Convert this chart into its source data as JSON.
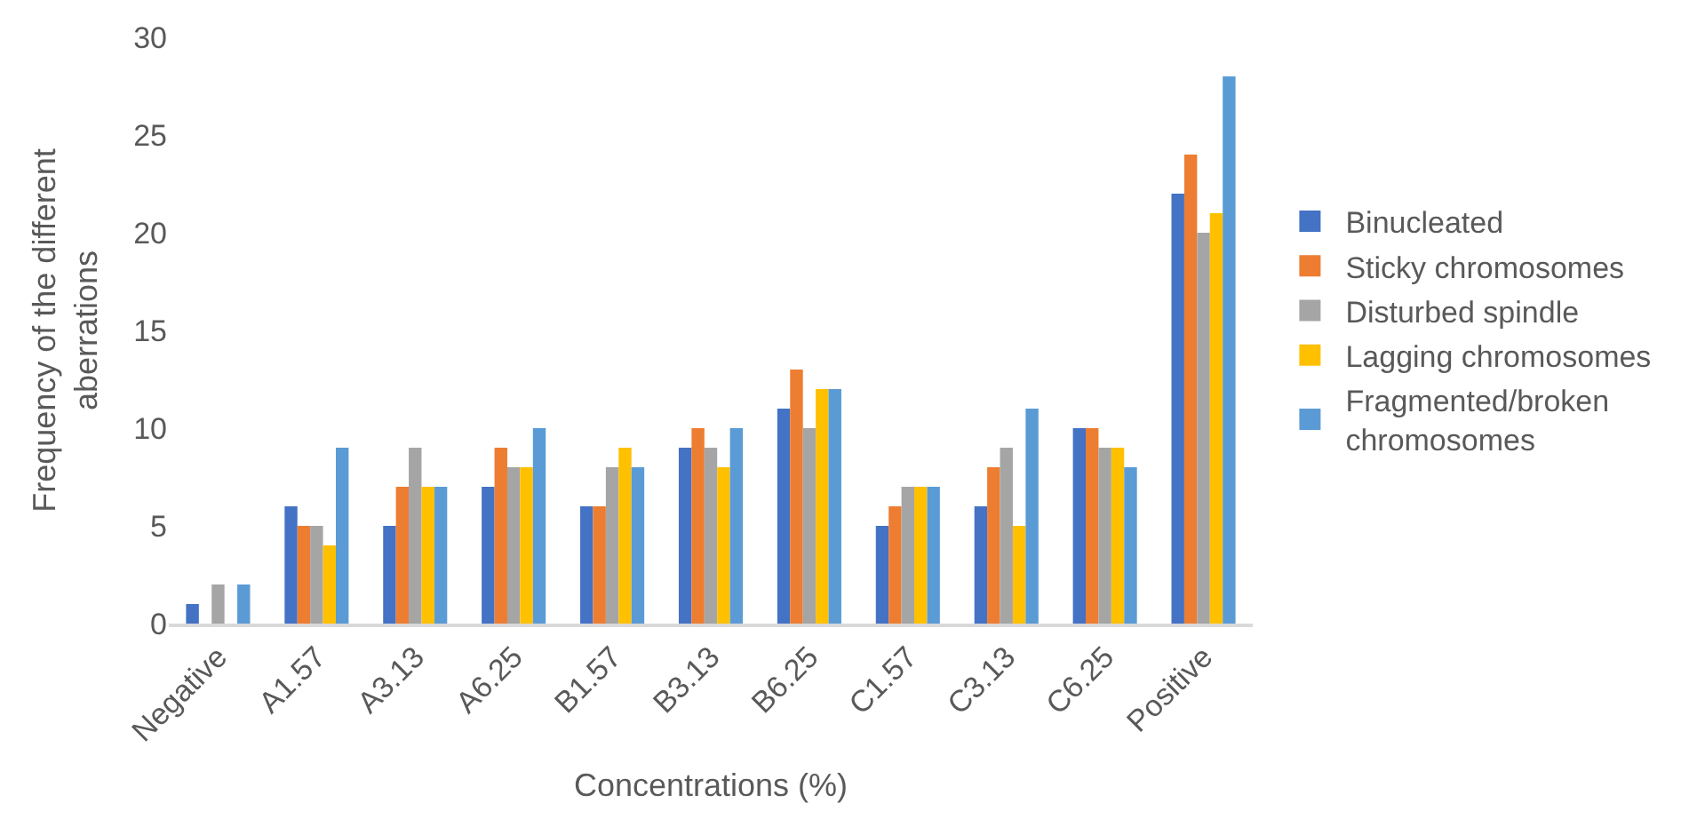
{
  "chart_data": {
    "type": "bar",
    "xlabel": "Concentrations (%)",
    "ylabel": "Frequency of the different aberrations",
    "categories": [
      "Negative",
      "A1.57",
      "A3.13",
      "A6.25",
      "B1.57",
      "B3.13",
      "B6.25",
      "C1.57",
      "C3.13",
      "C6.25",
      "Positive"
    ],
    "series": [
      {
        "name": "Binucleated",
        "color": "#4472c4",
        "values": [
          1,
          6,
          5,
          7,
          6,
          9,
          11,
          5,
          6,
          10,
          22
        ]
      },
      {
        "name": "Sticky chromosomes",
        "color": "#ed7d31",
        "values": [
          0,
          5,
          7,
          9,
          6,
          10,
          13,
          6,
          8,
          10,
          24
        ]
      },
      {
        "name": "Disturbed spindle",
        "color": "#a5a5a5",
        "values": [
          2,
          5,
          9,
          8,
          8,
          9,
          10,
          7,
          9,
          9,
          20
        ]
      },
      {
        "name": "Lagging chromosomes",
        "color": "#ffc000",
        "values": [
          0,
          4,
          7,
          8,
          9,
          8,
          12,
          7,
          5,
          9,
          21
        ]
      },
      {
        "name": "Fragmented/broken chromosomes",
        "color": "#5b9bd5",
        "values": [
          2,
          9,
          7,
          10,
          8,
          10,
          12,
          7,
          11,
          8,
          28
        ]
      }
    ],
    "ylim": [
      0,
      30
    ],
    "yticks": [
      0,
      5,
      10,
      15,
      20,
      25,
      30
    ],
    "grid": false,
    "legend": "right"
  }
}
